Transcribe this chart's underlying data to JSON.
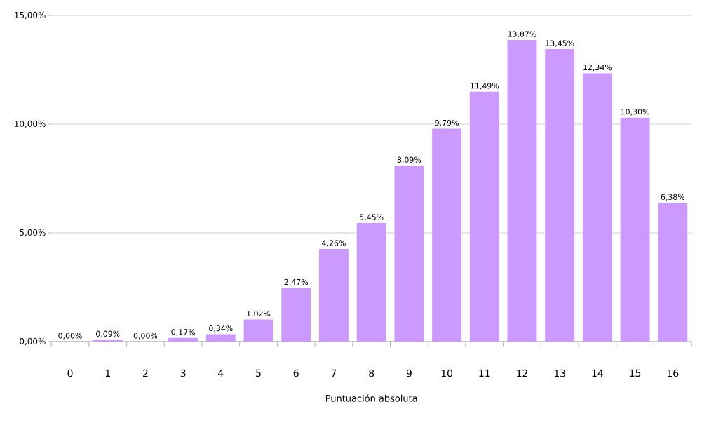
{
  "chart_data": {
    "type": "bar",
    "xlabel": "Puntuación absoluta",
    "categories": [
      "0",
      "1",
      "2",
      "3",
      "4",
      "5",
      "6",
      "7",
      "8",
      "9",
      "10",
      "11",
      "12",
      "13",
      "14",
      "15",
      "16"
    ],
    "values": [
      0,
      0.09,
      0,
      0.17,
      0.34,
      1.02,
      2.47,
      4.26,
      5.45,
      8.09,
      9.79,
      11.49,
      13.87,
      13.45,
      12.34,
      10.3,
      6.38
    ],
    "value_labels": [
      "0,00%",
      "0,09%",
      "0,00%",
      "0,17%",
      "0,34%",
      "1,02%",
      "2,47%",
      "4,26%",
      "5,45%",
      "8,09%",
      "9,79%",
      "11,49%",
      "13,87%",
      "13,45%",
      "12,34%",
      "10,30%",
      "6,38%"
    ],
    "color": "#cc99ff",
    "ylim": [
      0,
      15
    ],
    "yticks": [
      {
        "value": 0,
        "label": "0,00%"
      },
      {
        "value": 5,
        "label": "5,00%"
      },
      {
        "value": 10,
        "label": "10,00%"
      },
      {
        "value": 15,
        "label": "15,00%"
      }
    ],
    "grid": "y"
  }
}
